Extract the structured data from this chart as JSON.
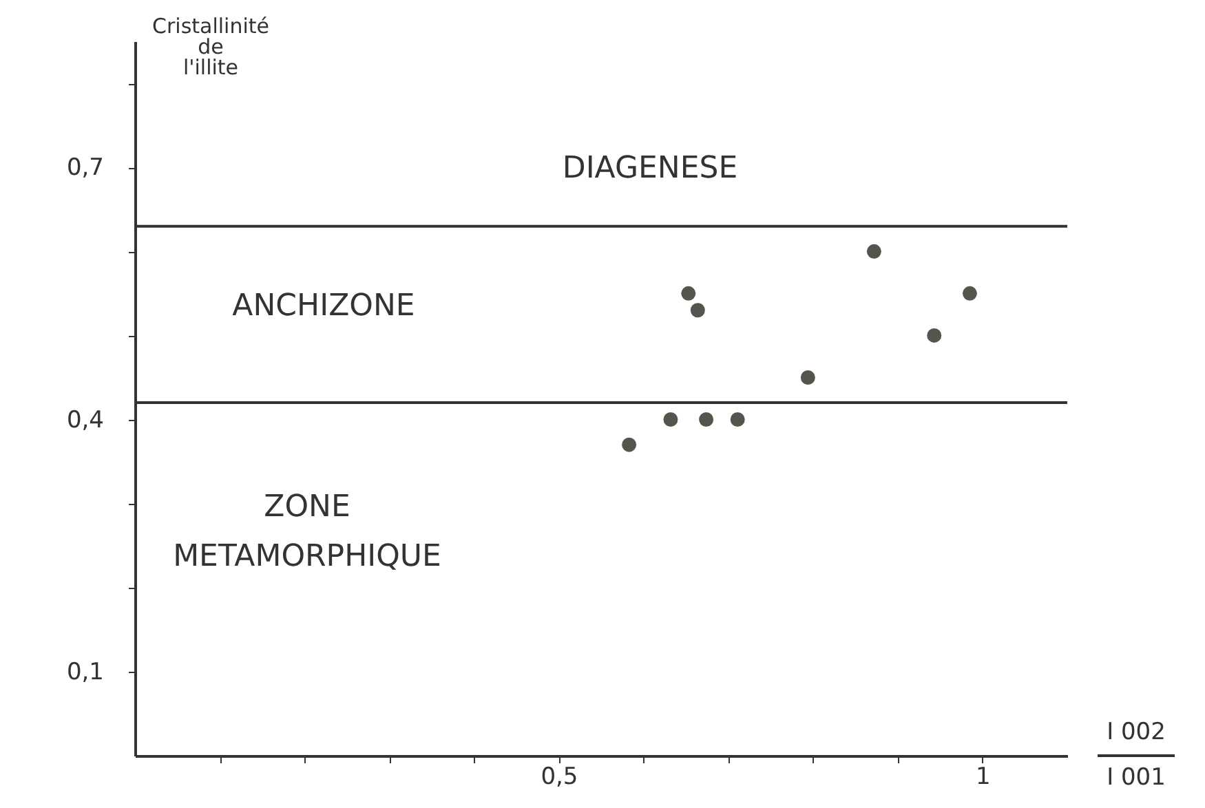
{
  "chart_data": {
    "type": "scatter",
    "xlabel": "I 002\nI 001",
    "ylabel": "Cristallinité\nde\nl'illite",
    "x": [
      0.583,
      0.632,
      0.674,
      0.711,
      0.653,
      0.664,
      0.794,
      0.872,
      0.943,
      0.985
    ],
    "values": [
      0.37,
      0.4,
      0.4,
      0.4,
      0.55,
      0.53,
      0.45,
      0.6,
      0.5,
      0.55
    ],
    "color": "#55554d",
    "marker": "circle",
    "xlim": [
      0,
      1.1
    ],
    "ylim": [
      0,
      0.85
    ],
    "xticks": [
      {
        "value": 0.1,
        "label": null
      },
      {
        "value": 0.2,
        "label": null
      },
      {
        "value": 0.3,
        "label": null
      },
      {
        "value": 0.4,
        "label": null
      },
      {
        "value": 0.5,
        "label": "0,5"
      },
      {
        "value": 0.6,
        "label": null
      },
      {
        "value": 0.7,
        "label": null
      },
      {
        "value": 0.8,
        "label": null
      },
      {
        "value": 0.9,
        "label": null
      },
      {
        "value": 1,
        "label": "1"
      }
    ],
    "yticks": [
      {
        "value": 0.1,
        "label": "0,1"
      },
      {
        "value": 0.2,
        "label": null
      },
      {
        "value": 0.3,
        "label": null
      },
      {
        "value": 0.4,
        "label": "0,4"
      },
      {
        "value": 0.5,
        "label": null
      },
      {
        "value": 0.6,
        "label": null
      },
      {
        "value": 0.7,
        "label": "0,7"
      },
      {
        "value": 0.8,
        "label": null
      }
    ],
    "ref_lines": [
      {
        "axis": "y",
        "value": 0.63,
        "color": "#333333"
      },
      {
        "axis": "y",
        "value": 0.42,
        "color": "#333333"
      }
    ],
    "annotations": [
      "DIAGENESE",
      "ANCHIZONE",
      "ZONE\nMETAMORPHIQUE"
    ],
    "grid": false
  }
}
